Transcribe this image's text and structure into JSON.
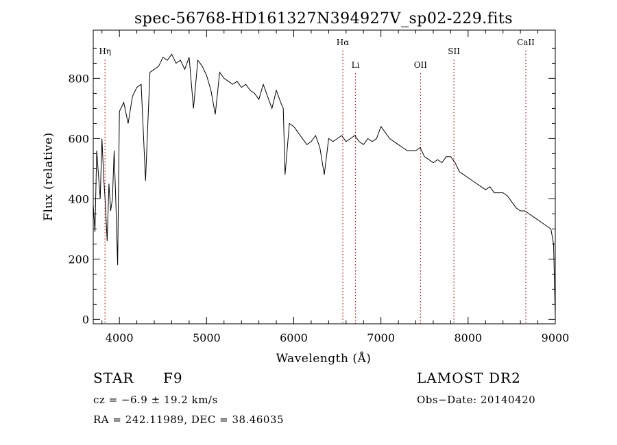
{
  "chart_data": {
    "type": "line",
    "title": "spec-56768-HD161327N394927V_sp02-229.fits",
    "xlabel": "Wavelength (Å)",
    "ylabel": "Flux (relative)",
    "xlim": [
      3700,
      9000
    ],
    "ylim": [
      -15,
      960
    ],
    "x_major_ticks": [
      4000,
      5000,
      6000,
      7000,
      8000,
      9000
    ],
    "y_major_ticks": [
      0,
      200,
      400,
      600,
      800
    ],
    "grid": false,
    "legend": "none",
    "series_color": "#000000",
    "line_marker_color": "#cc0000",
    "line_markers": [
      {
        "label": "Hη",
        "wavelength": 3835,
        "label_flux": 880
      },
      {
        "label": "Hα",
        "wavelength": 6563,
        "label_flux": 910
      },
      {
        "label": "Li",
        "wavelength": 6708,
        "label_flux": 835
      },
      {
        "label": "OII",
        "wavelength": 7454,
        "label_flux": 835
      },
      {
        "label": "SII",
        "wavelength": 7837,
        "label_flux": 880
      },
      {
        "label": "CaII",
        "wavelength": 8662,
        "label_flux": 910
      }
    ],
    "series": [
      {
        "x": [
          3700,
          3720,
          3740,
          3760,
          3780,
          3800,
          3820,
          3840,
          3860,
          3880,
          3900,
          3920,
          3940,
          3960,
          3980,
          4000,
          4050,
          4100,
          4150,
          4200,
          4250,
          4300,
          4350,
          4400,
          4450,
          4500,
          4550,
          4600,
          4650,
          4700,
          4750,
          4800,
          4850,
          4900,
          4950,
          5000,
          5050,
          5100,
          5150,
          5200,
          5250,
          5300,
          5350,
          5400,
          5450,
          5500,
          5550,
          5600,
          5650,
          5700,
          5750,
          5800,
          5850,
          5880,
          5900,
          5950,
          6000,
          6050,
          6100,
          6150,
          6200,
          6250,
          6300,
          6350,
          6400,
          6450,
          6500,
          6550,
          6600,
          6650,
          6700,
          6750,
          6800,
          6850,
          6900,
          6950,
          7000,
          7050,
          7100,
          7150,
          7200,
          7250,
          7300,
          7350,
          7400,
          7450,
          7500,
          7550,
          7600,
          7650,
          7700,
          7750,
          7800,
          7850,
          7900,
          7950,
          8000,
          8050,
          8100,
          8150,
          8200,
          8250,
          8300,
          8350,
          8400,
          8450,
          8500,
          8550,
          8600,
          8650,
          8700,
          8750,
          8800,
          8850,
          8900,
          8950,
          8980,
          9000
        ],
        "y": [
          380,
          290,
          560,
          480,
          400,
          600,
          470,
          380,
          260,
          450,
          360,
          400,
          560,
          380,
          180,
          690,
          720,
          650,
          740,
          770,
          780,
          460,
          820,
          830,
          840,
          870,
          860,
          880,
          850,
          860,
          830,
          870,
          700,
          860,
          840,
          810,
          760,
          680,
          820,
          800,
          790,
          780,
          790,
          770,
          780,
          760,
          750,
          730,
          780,
          740,
          700,
          760,
          720,
          700,
          480,
          650,
          640,
          620,
          600,
          580,
          590,
          610,
          570,
          480,
          600,
          590,
          600,
          610,
          590,
          600,
          610,
          590,
          580,
          600,
          590,
          600,
          640,
          620,
          600,
          590,
          580,
          570,
          560,
          560,
          560,
          570,
          540,
          530,
          520,
          530,
          520,
          540,
          540,
          520,
          490,
          480,
          470,
          460,
          450,
          440,
          430,
          440,
          420,
          420,
          420,
          410,
          390,
          370,
          360,
          360,
          350,
          340,
          330,
          320,
          310,
          300,
          250,
          5
        ]
      }
    ]
  },
  "info": {
    "object_class": "STAR",
    "subclass": "F9",
    "survey": "LAMOST DR2",
    "redshift": "cz = −6.9 ± 19.2 km/s",
    "obs_date": "Obs−Date: 20140420",
    "coords": "RA = 242.11989, DEC =  38.46035"
  }
}
